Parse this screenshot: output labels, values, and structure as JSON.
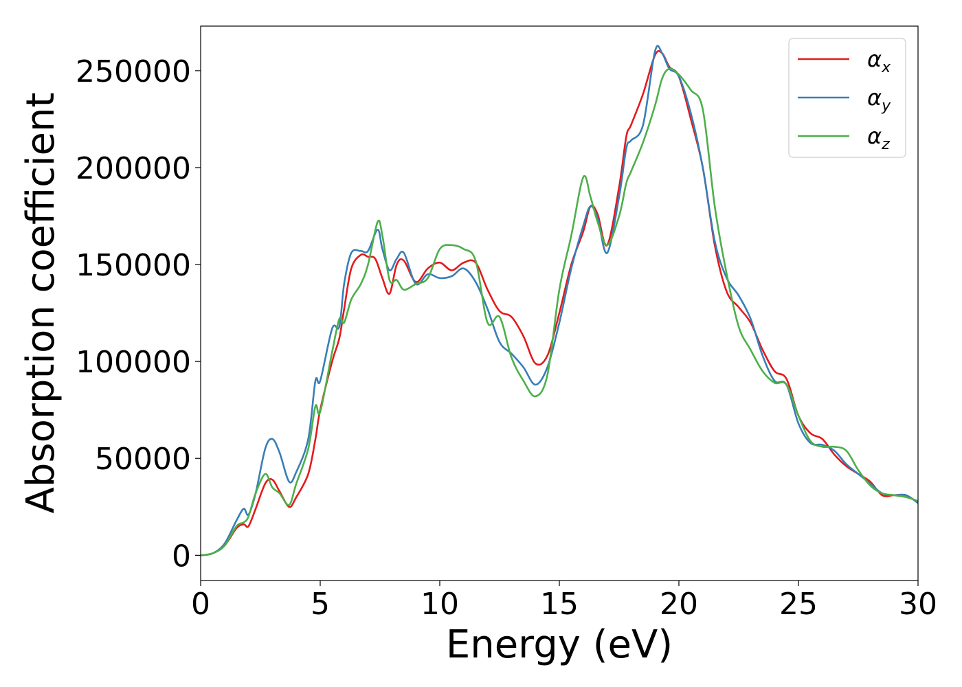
{
  "chart_data": {
    "type": "line",
    "title": "",
    "xlabel": "Energy (eV)",
    "ylabel": "Absorption coefficient",
    "xlim": [
      0,
      30
    ],
    "ylim": [
      -13000,
      273000
    ],
    "xticks": [
      0,
      5,
      10,
      15,
      20,
      25,
      30
    ],
    "yticks": [
      0,
      50000,
      100000,
      150000,
      200000,
      250000
    ],
    "grid": false,
    "legend_position": "top-right",
    "series": [
      {
        "name": "α",
        "subscript": "x",
        "color": "#e41a1c",
        "x": [
          0,
          0.5,
          1.0,
          1.5,
          1.8,
          2.0,
          2.3,
          2.7,
          3.0,
          3.3,
          3.7,
          4.0,
          4.5,
          4.8,
          5.0,
          5.5,
          5.8,
          6.0,
          6.3,
          6.7,
          7.0,
          7.3,
          7.6,
          7.9,
          8.2,
          8.5,
          9.0,
          9.5,
          10.0,
          10.5,
          11.0,
          11.5,
          12.0,
          12.5,
          13.0,
          13.5,
          14.0,
          14.5,
          15.0,
          15.5,
          16.0,
          16.3,
          16.6,
          17.0,
          17.5,
          17.8,
          18.0,
          18.5,
          19.0,
          19.3,
          19.6,
          20.0,
          20.5,
          21.0,
          21.5,
          22.0,
          22.5,
          23.0,
          23.5,
          24.0,
          24.5,
          25.0,
          25.5,
          26.0,
          26.5,
          27.0,
          27.5,
          28.0,
          28.5,
          29.0,
          29.5,
          30.0
        ],
        "y": [
          0,
          1000,
          5000,
          14000,
          16000,
          15000,
          24000,
          37000,
          39000,
          33000,
          25000,
          30000,
          42000,
          60000,
          75000,
          100000,
          112000,
          127000,
          148000,
          155000,
          154000,
          153000,
          143000,
          135000,
          150000,
          152000,
          141000,
          148000,
          151000,
          147000,
          151000,
          151000,
          137000,
          126000,
          123000,
          113000,
          99000,
          103000,
          125000,
          150000,
          167000,
          180000,
          176000,
          160000,
          190000,
          216000,
          222000,
          238000,
          258000,
          259000,
          252000,
          247000,
          225000,
          200000,
          160000,
          136000,
          128000,
          120000,
          106000,
          95000,
          91000,
          72000,
          63000,
          60000,
          52000,
          46000,
          42000,
          38000,
          31000,
          31000,
          31000,
          27000
        ]
      },
      {
        "name": "α",
        "subscript": "y",
        "color": "#377eb8",
        "x": [
          0,
          0.5,
          1.0,
          1.5,
          1.8,
          2.0,
          2.3,
          2.7,
          3.0,
          3.3,
          3.7,
          4.0,
          4.5,
          4.8,
          5.0,
          5.5,
          5.8,
          6.0,
          6.3,
          6.7,
          7.0,
          7.4,
          7.6,
          7.9,
          8.2,
          8.5,
          9.0,
          9.5,
          10.0,
          10.5,
          11.0,
          11.5,
          12.0,
          12.5,
          13.0,
          13.5,
          14.0,
          14.5,
          15.0,
          15.5,
          16.0,
          16.3,
          16.6,
          17.0,
          17.5,
          17.8,
          18.0,
          18.5,
          19.0,
          19.3,
          19.6,
          20.0,
          20.5,
          21.0,
          21.5,
          22.0,
          22.5,
          23.0,
          23.5,
          24.0,
          24.5,
          25.0,
          25.5,
          26.0,
          26.5,
          27.0,
          27.5,
          28.0,
          28.5,
          29.0,
          29.5,
          30.0
        ],
        "y": [
          0,
          1000,
          6000,
          18000,
          24000,
          21000,
          32000,
          55000,
          60000,
          53000,
          38000,
          43000,
          60000,
          90000,
          90000,
          117000,
          118000,
          140000,
          156000,
          157000,
          157000,
          168000,
          158000,
          147000,
          153000,
          156000,
          140000,
          145000,
          143000,
          144000,
          148000,
          141000,
          127000,
          110000,
          104000,
          97000,
          88000,
          97000,
          120000,
          148000,
          170000,
          180000,
          174000,
          156000,
          185000,
          210000,
          214000,
          222000,
          260000,
          259000,
          251000,
          247000,
          228000,
          200000,
          162000,
          143000,
          134000,
          122000,
          103000,
          90000,
          88000,
          68000,
          58000,
          57000,
          54000,
          47000,
          42000,
          37000,
          32000,
          31000,
          31000,
          27000
        ]
      },
      {
        "name": "α",
        "subscript": "z",
        "color": "#4daf4a",
        "x": [
          0,
          0.5,
          1.0,
          1.5,
          1.8,
          2.0,
          2.3,
          2.7,
          3.0,
          3.3,
          3.7,
          4.0,
          4.5,
          4.8,
          5.0,
          5.5,
          5.8,
          6.0,
          6.3,
          6.7,
          7.0,
          7.4,
          7.6,
          7.9,
          8.2,
          8.5,
          9.0,
          9.5,
          10.0,
          10.5,
          11.0,
          11.5,
          12.0,
          12.5,
          13.0,
          13.5,
          14.0,
          14.5,
          15.0,
          15.5,
          16.0,
          16.3,
          16.6,
          17.0,
          17.5,
          17.8,
          18.0,
          18.5,
          19.0,
          19.3,
          19.6,
          20.0,
          20.5,
          21.0,
          21.5,
          22.0,
          22.5,
          23.0,
          23.5,
          24.0,
          24.5,
          25.0,
          25.5,
          26.0,
          26.5,
          27.0,
          27.5,
          28.0,
          28.5,
          29.0,
          29.5,
          30.0
        ],
        "y": [
          0,
          1000,
          5000,
          15000,
          17000,
          20000,
          32000,
          42000,
          35000,
          32000,
          26000,
          37000,
          55000,
          77000,
          74000,
          105000,
          122000,
          120000,
          132000,
          140000,
          150000,
          172000,
          165000,
          142000,
          142000,
          137000,
          140000,
          143000,
          158000,
          160000,
          158000,
          152000,
          120000,
          123000,
          102000,
          90000,
          82000,
          93000,
          137000,
          165000,
          195000,
          185000,
          172000,
          160000,
          175000,
          192000,
          198000,
          213000,
          232000,
          246000,
          251000,
          248000,
          240000,
          230000,
          180000,
          145000,
          118000,
          106000,
          95000,
          89000,
          88000,
          72000,
          59000,
          56000,
          56000,
          54000,
          44000,
          36000,
          32000,
          31000,
          30000,
          28000
        ]
      }
    ]
  }
}
